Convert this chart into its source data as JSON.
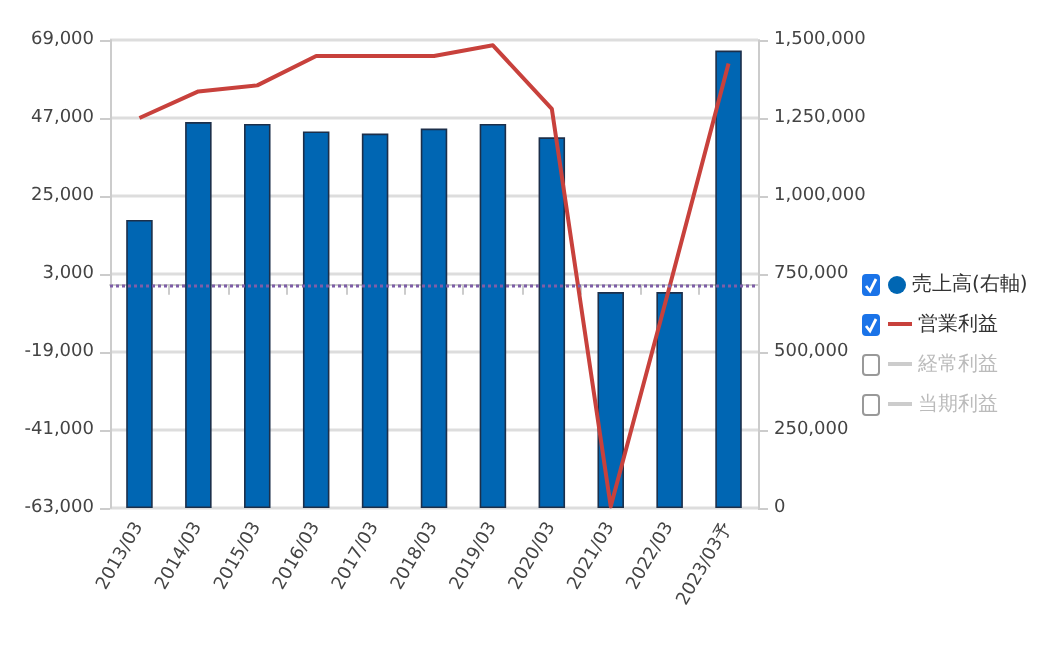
{
  "chart_data": {
    "type": "bar",
    "categories": [
      "2013/03",
      "2014/03",
      "2015/03",
      "2016/03",
      "2017/03",
      "2018/03",
      "2019/03",
      "2020/03",
      "2021/03",
      "2022/03",
      "2023/03予"
    ],
    "series": [
      {
        "name": "売上高(右軸)",
        "axis": "y2",
        "color": "#0066b3",
        "values": [
          923000,
          1237000,
          1231000,
          1207000,
          1200000,
          1216000,
          1231000,
          1188000,
          692000,
          692000,
          1466000
        ]
      },
      {
        "name": "営業利益",
        "type": "line",
        "color": "#c8413c",
        "values": [
          47000,
          54500,
          56200,
          64500,
          64500,
          64500,
          67500,
          49600,
          -62600,
          -500,
          62400
        ]
      },
      {
        "name": "経常利益",
        "type": "line",
        "color": "#c8c8c8",
        "values": [
          null,
          null,
          null,
          null,
          null,
          null,
          null,
          null,
          null,
          null,
          null
        ]
      },
      {
        "name": "当期利益",
        "type": "line",
        "color": "#c8c8c8",
        "values": [
          null,
          null,
          null,
          null,
          null,
          null,
          null,
          null,
          null,
          null,
          null
        ]
      }
    ],
    "ylim": [
      -63000,
      69000
    ],
    "yticks": [
      {
        "value": -63000,
        "label": "-63,000"
      },
      {
        "value": -41000,
        "label": "-41,000"
      },
      {
        "value": -19000,
        "label": "-19,000"
      },
      {
        "value": 3000,
        "label": "3,000"
      },
      {
        "value": 25000,
        "label": "25,000"
      },
      {
        "value": 47000,
        "label": "47,000"
      },
      {
        "value": 69000,
        "label": "69,000"
      }
    ],
    "y2lim": [
      0,
      1500000
    ],
    "y2ticks": [
      0,
      {
        "value": 250000,
        "label": "250,000"
      },
      {
        "value": 500000,
        "label": "500,000"
      },
      {
        "value": 750000,
        "label": "750,000"
      },
      {
        "value": 1000000,
        "label": "1,000,000"
      },
      {
        "value": 1250000,
        "label": "1,250,000"
      },
      {
        "value": 1500000,
        "label": "1,500,000"
      }
    ],
    "ref_lines": [
      {
        "axis": "y",
        "value": 0,
        "color": "#7e5ea8",
        "line_style": "dotted"
      }
    ],
    "grid": "y",
    "legend": "right",
    "marker": "none"
  }
}
